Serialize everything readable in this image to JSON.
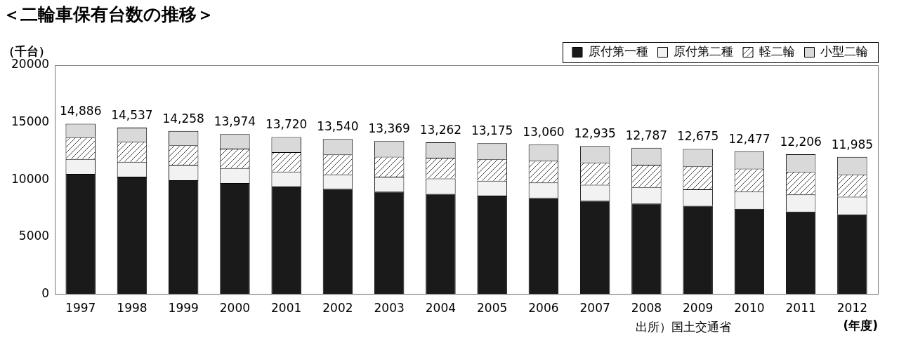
{
  "chart_data": {
    "type": "bar",
    "title": "＜二輪車保有台数の推移＞",
    "y_label": "（千台）",
    "x_label": "(年度)",
    "source": "出所）国土交通省",
    "categories": [
      "1997",
      "1998",
      "1999",
      "2000",
      "2001",
      "2002",
      "2003",
      "2004",
      "2005",
      "2006",
      "2007",
      "2008",
      "2009",
      "2010",
      "2011",
      "2012"
    ],
    "series": [
      {
        "name": "原付第一種",
        "color": "#1a1a1a",
        "values": [
          10500,
          10250,
          9950,
          9700,
          9400,
          9200,
          8950,
          8750,
          8600,
          8400,
          8150,
          7900,
          7700,
          7450,
          7200,
          6950
        ]
      },
      {
        "name": "原付第二種",
        "color": "#f2f2f2",
        "values": [
          1300,
          1300,
          1350,
          1300,
          1300,
          1250,
          1300,
          1350,
          1300,
          1350,
          1400,
          1450,
          1450,
          1500,
          1500,
          1550
        ]
      },
      {
        "name": "軽二輪",
        "color": "#ffffff",
        "values": [
          1900,
          1750,
          1700,
          1700,
          1700,
          1750,
          1750,
          1800,
          1900,
          1900,
          1950,
          1950,
          2000,
          2000,
          2000,
          1950
        ]
      },
      {
        "name": "小型二輪",
        "color": "#d9d9d9",
        "values": [
          1186,
          1237,
          1258,
          1274,
          1320,
          1340,
          1369,
          1362,
          1375,
          1410,
          1435,
          1487,
          1525,
          1527,
          1506,
          1535
        ]
      }
    ],
    "totals": [
      14886,
      14537,
      14258,
      13974,
      13720,
      13540,
      13369,
      13262,
      13175,
      13060,
      12935,
      12787,
      12675,
      12477,
      12206,
      11985
    ],
    "total_labels": [
      "14,886",
      "14,537",
      "14,258",
      "13,974",
      "13,720",
      "13,540",
      "13,369",
      "13,262",
      "13,175",
      "13,060",
      "12,935",
      "12,787",
      "12,675",
      "12,477",
      "12,206",
      "11,985"
    ],
    "ylim": [
      0,
      20000
    ],
    "yticks": [
      0,
      5000,
      10000,
      15000,
      20000
    ],
    "stacked": true,
    "grid": false,
    "legend": "top-right"
  }
}
